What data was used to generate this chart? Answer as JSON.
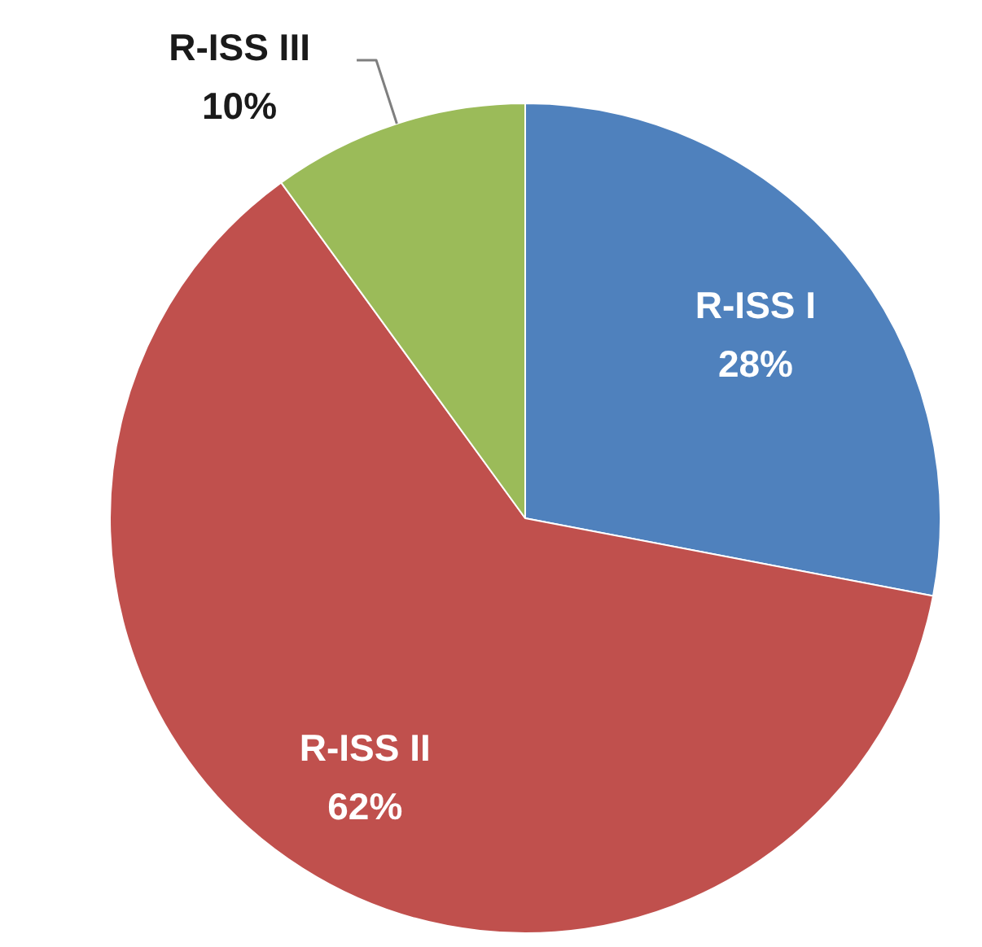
{
  "chart_data": {
    "type": "pie",
    "categories": [
      "R-ISS I",
      "R-ISS II",
      "R-ISS III"
    ],
    "values": [
      28,
      62,
      10
    ],
    "colors": [
      "#4f81bd",
      "#c0504d",
      "#9bbb59"
    ],
    "value_labels": [
      "28%",
      "62%",
      "10%"
    ]
  }
}
